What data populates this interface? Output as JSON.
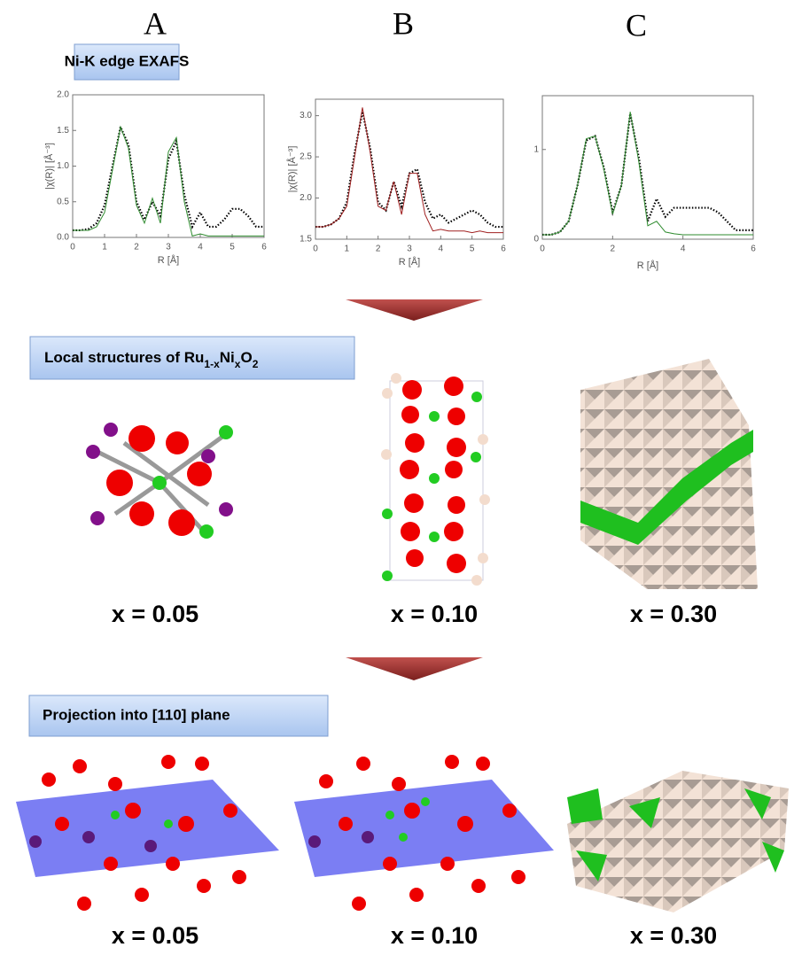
{
  "panel_labels": [
    "A",
    "B",
    "C"
  ],
  "exafs_label": "Ni-K edge EXAFS",
  "chart_data": [
    {
      "type": "line",
      "xlabel": "R [Å]",
      "ylabel": "|χ(R)| [Å⁻³]",
      "x": [
        0,
        0.25,
        0.5,
        0.75,
        1,
        1.25,
        1.5,
        1.75,
        2,
        2.25,
        2.5,
        2.75,
        3,
        3.25,
        3.5,
        3.75,
        4,
        4.25,
        4.5,
        4.75,
        5,
        5.25,
        5.5,
        5.75,
        6
      ],
      "xlim": [
        0,
        6
      ],
      "xticks": [
        0,
        1,
        2,
        3,
        4,
        5,
        6
      ],
      "ylim": [
        0,
        2
      ],
      "yticks": [
        {
          "value": 0,
          "label": "0.0"
        },
        0.5,
        {
          "value": 1,
          "label": "1.0"
        },
        1.5,
        {
          "value": 2,
          "label": "2.0"
        }
      ],
      "series": [
        {
          "color": "#000000",
          "style": "dotted",
          "values": [
            0.1,
            0.1,
            0.12,
            0.2,
            0.45,
            1.0,
            1.55,
            1.3,
            0.5,
            0.25,
            0.5,
            0.3,
            1.1,
            1.35,
            0.6,
            0.15,
            0.35,
            0.15,
            0.15,
            0.25,
            0.4,
            0.4,
            0.3,
            0.15,
            0.15
          ]
        },
        {
          "color": "#2e8b2e",
          "style": "solid",
          "values": [
            0.1,
            0.1,
            0.1,
            0.15,
            0.35,
            0.95,
            1.55,
            1.25,
            0.45,
            0.2,
            0.55,
            0.2,
            1.2,
            1.4,
            0.5,
            0.02,
            0.05,
            0.02,
            0.02,
            0.02,
            0.02,
            0.02,
            0.02,
            0.02,
            0.02
          ]
        }
      ]
    },
    {
      "type": "line",
      "xlabel": "R [Å]",
      "ylabel": "|χ(R)| [Å⁻³]",
      "x": [
        0,
        0.25,
        0.5,
        0.75,
        1,
        1.25,
        1.5,
        1.75,
        2,
        2.25,
        2.5,
        2.75,
        3,
        3.25,
        3.5,
        3.75,
        4,
        4.25,
        4.5,
        4.75,
        5,
        5.25,
        5.5,
        5.75,
        6
      ],
      "xlim": [
        0,
        6
      ],
      "xticks": [
        0,
        1,
        2,
        3,
        4,
        5,
        6
      ],
      "ylim": [
        1.5,
        3.2
      ],
      "yticks": [
        1.5,
        {
          "value": 2,
          "label": "2.0"
        },
        2.5,
        {
          "value": 3,
          "label": "3.0"
        }
      ],
      "series": [
        {
          "color": "#000000",
          "style": "dotted",
          "values": [
            1.65,
            1.65,
            1.68,
            1.75,
            1.95,
            2.55,
            3.05,
            2.6,
            1.95,
            1.85,
            2.2,
            1.9,
            2.3,
            2.35,
            1.95,
            1.75,
            1.8,
            1.7,
            1.75,
            1.8,
            1.85,
            1.8,
            1.7,
            1.65,
            1.65
          ]
        },
        {
          "color": "#a02020",
          "style": "solid",
          "values": [
            1.65,
            1.65,
            1.68,
            1.75,
            1.9,
            2.5,
            3.1,
            2.55,
            1.9,
            1.85,
            2.2,
            1.8,
            2.3,
            2.3,
            1.8,
            1.6,
            1.62,
            1.6,
            1.6,
            1.6,
            1.58,
            1.6,
            1.58,
            1.58,
            1.58
          ]
        }
      ]
    },
    {
      "type": "line",
      "xlabel": "R [Å]",
      "x": [
        0,
        0.25,
        0.5,
        0.75,
        1,
        1.25,
        1.5,
        1.75,
        2,
        2.25,
        2.5,
        2.75,
        3,
        3.25,
        3.5,
        3.75,
        4,
        4.25,
        4.5,
        4.75,
        5,
        5.25,
        5.5,
        5.75,
        6
      ],
      "xlim": [
        0,
        6
      ],
      "xticks": [
        0,
        2,
        4,
        6
      ],
      "ylim": [
        0,
        1.6
      ],
      "yticks": [
        0,
        1
      ],
      "series": [
        {
          "color": "#000000",
          "style": "dotted",
          "values": [
            0.05,
            0.05,
            0.08,
            0.2,
            0.6,
            1.1,
            1.15,
            0.8,
            0.3,
            0.6,
            1.4,
            0.9,
            0.2,
            0.45,
            0.25,
            0.35,
            0.35,
            0.35,
            0.35,
            0.35,
            0.3,
            0.2,
            0.1,
            0.1,
            0.1
          ]
        },
        {
          "color": "#2e8b2e",
          "style": "solid",
          "values": [
            0.05,
            0.05,
            0.08,
            0.2,
            0.6,
            1.12,
            1.15,
            0.78,
            0.28,
            0.6,
            1.42,
            0.85,
            0.15,
            0.2,
            0.08,
            0.06,
            0.05,
            0.05,
            0.05,
            0.05,
            0.05,
            0.05,
            0.05,
            0.05,
            0.05
          ]
        }
      ]
    }
  ],
  "local_structures_label": [
    "Local structures of Ru",
    "1-x",
    "Ni",
    "x",
    "O",
    "2"
  ],
  "local_x_labels": [
    "x = 0.05",
    "x = 0.10",
    "x = 0.30"
  ],
  "projection_label": "Projection into [110] plane",
  "projection_x_labels": [
    "x = 0.05",
    "x = 0.10",
    "x = 0.30"
  ]
}
